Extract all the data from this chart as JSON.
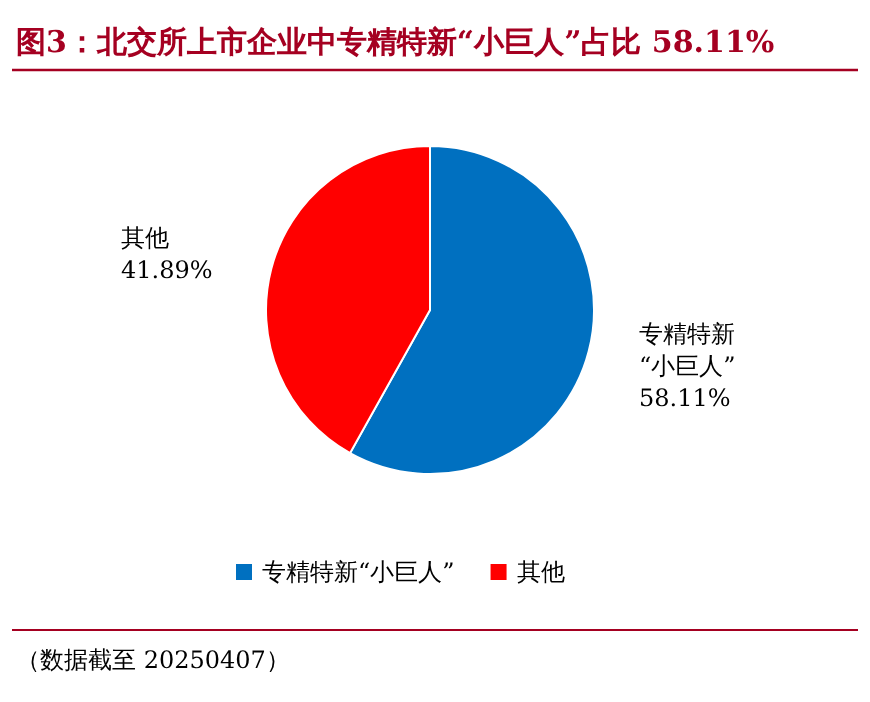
{
  "chart_data": {
    "type": "pie",
    "title": "图3：北交所上市企业中专精特新“小巨人”占比 58.11%",
    "categories": [
      "专精特新“小巨人”",
      "其他"
    ],
    "values": [
      58.11,
      41.89
    ],
    "colors": [
      "#0070c0",
      "#ff0000"
    ],
    "value_labels": [
      "58.11%",
      "41.89%"
    ],
    "legend": "bottom",
    "annotations": [
      "（数据截至 20250407）"
    ]
  }
}
